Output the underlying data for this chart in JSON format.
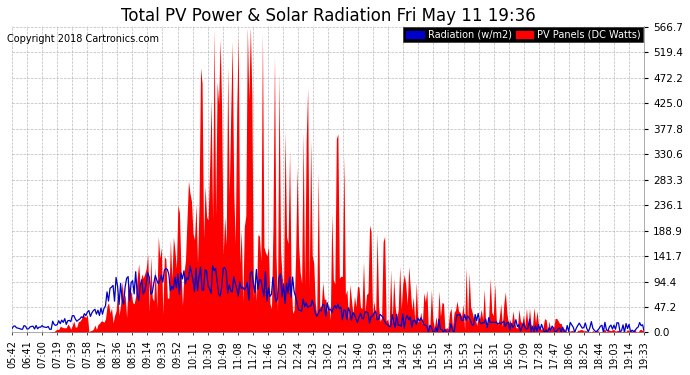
{
  "title": "Total PV Power & Solar Radiation Fri May 11 19:36",
  "copyright": "Copyright 2018 Cartronics.com",
  "legend_radiation": "Radiation (w/m2)",
  "legend_pv": "PV Panels (DC Watts)",
  "y_ticks": [
    0.0,
    47.2,
    94.4,
    141.7,
    188.9,
    236.1,
    283.3,
    330.6,
    377.8,
    425.0,
    472.2,
    519.4,
    566.7
  ],
  "y_max": 566.7,
  "y_min": 0.0,
  "background_color": "#ffffff",
  "plot_bg_color": "#ffffff",
  "grid_color": "#aaaaaa",
  "title_color": "#000000",
  "radiation_color": "#0000cc",
  "pv_color": "#ff0000",
  "pv_fill_color": "#ff0000",
  "title_fontsize": 12,
  "copyright_fontsize": 7,
  "tick_fontsize": 7.5,
  "legend_fontsize": 7,
  "n_points": 420,
  "x_labels": [
    "05:42",
    "06:41",
    "07:00",
    "07:19",
    "07:39",
    "07:58",
    "08:17",
    "08:36",
    "08:55",
    "09:14",
    "09:33",
    "09:52",
    "10:11",
    "10:30",
    "10:49",
    "11:08",
    "11:27",
    "11:46",
    "12:05",
    "12:24",
    "12:43",
    "13:02",
    "13:21",
    "13:40",
    "13:59",
    "14:18",
    "14:37",
    "14:56",
    "15:15",
    "15:34",
    "15:53",
    "16:12",
    "16:31",
    "16:50",
    "17:09",
    "17:28",
    "17:47",
    "18:06",
    "18:25",
    "18:44",
    "19:03",
    "19:14",
    "19:33"
  ]
}
